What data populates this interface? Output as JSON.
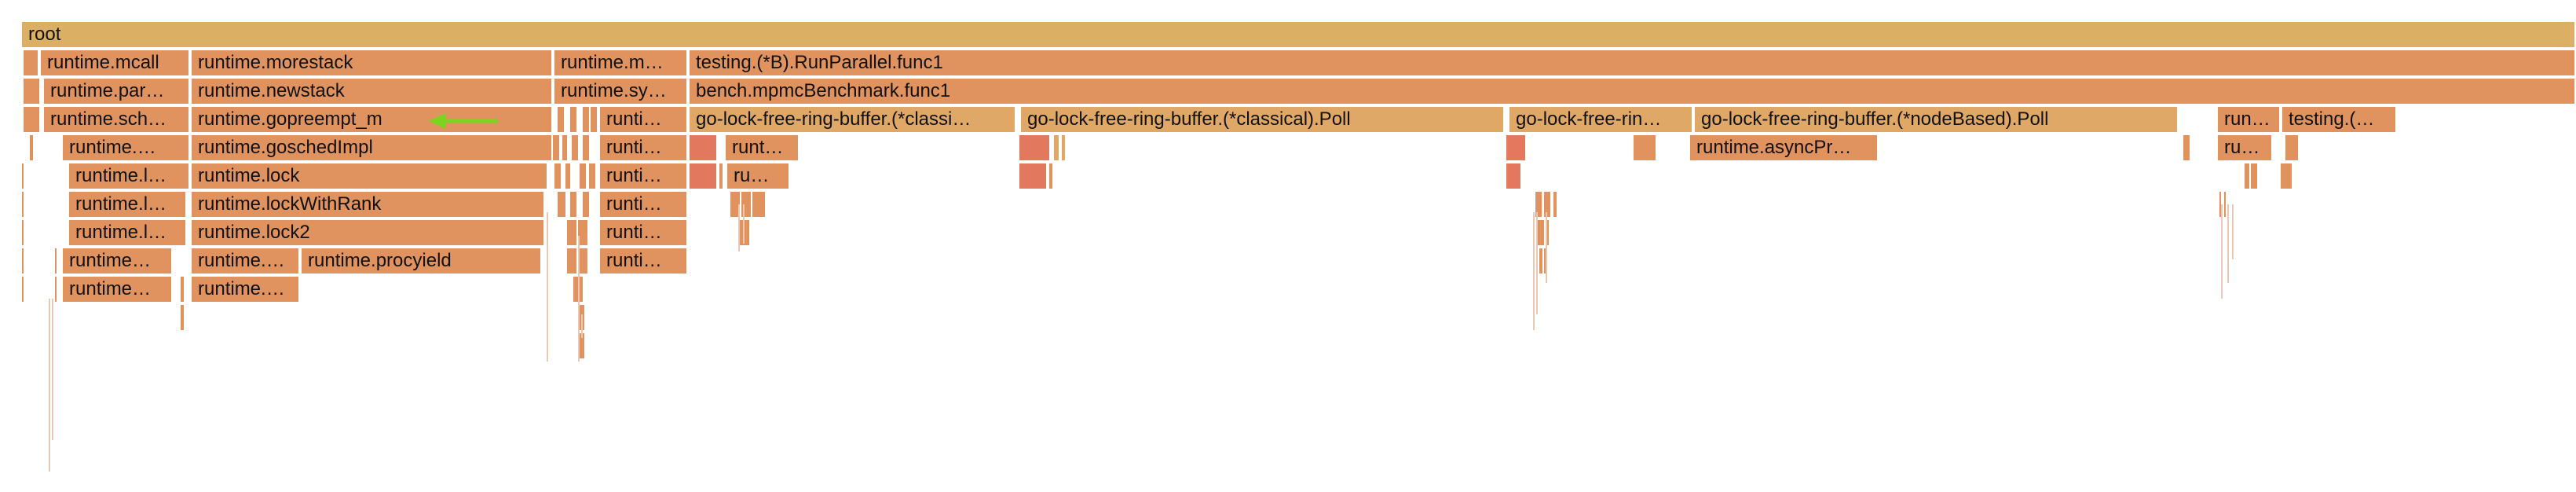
{
  "colors": {
    "root": "#dcb064",
    "orange": "#e0925f",
    "light": "#e0a866",
    "red": "#e2795f",
    "annotation_arrow": "#7ed321"
  },
  "frames": [
    {
      "label": "root"
    },
    {
      "label": "runtime.mcall"
    },
    {
      "label": "runtime.morestack"
    },
    {
      "label": "runtime.m…"
    },
    {
      "label": "testing.(*B).RunParallel.func1"
    },
    {
      "label": "runtime.par…"
    },
    {
      "label": "runtime.newstack"
    },
    {
      "label": "runtime.sy…"
    },
    {
      "label": "bench.mpmcBenchmark.func1"
    },
    {
      "label": "runtime.sch…"
    },
    {
      "label": "runtime.gopreempt_m"
    },
    {
      "label": "runti…"
    },
    {
      "label": "go-lock-free-ring-buffer.(*classi…"
    },
    {
      "label": "go-lock-free-ring-buffer.(*classical).Poll"
    },
    {
      "label": "go-lock-free-rin…"
    },
    {
      "label": "go-lock-free-ring-buffer.(*nodeBased).Poll"
    },
    {
      "label": "run…"
    },
    {
      "label": "testing.(…"
    },
    {
      "label": "runtime.…"
    },
    {
      "label": "runtime.goschedImpl"
    },
    {
      "label": "runti…"
    },
    {
      "label": "runt…"
    },
    {
      "label": "runtime.asyncPr…"
    },
    {
      "label": "ru…"
    },
    {
      "label": "runtime.l…"
    },
    {
      "label": "runtime.lock"
    },
    {
      "label": "runti…"
    },
    {
      "label": "ru…"
    },
    {
      "label": "runtime.l…"
    },
    {
      "label": "runtime.lockWithRank"
    },
    {
      "label": "runti…"
    },
    {
      "label": "runtime.l…"
    },
    {
      "label": "runtime.lock2"
    },
    {
      "label": "runti…"
    },
    {
      "label": "runtime…"
    },
    {
      "label": "runtime.…"
    },
    {
      "label": "runtime.procyield"
    },
    {
      "label": "runti…"
    },
    {
      "label": "runtime…"
    },
    {
      "label": "runtime.…"
    }
  ]
}
